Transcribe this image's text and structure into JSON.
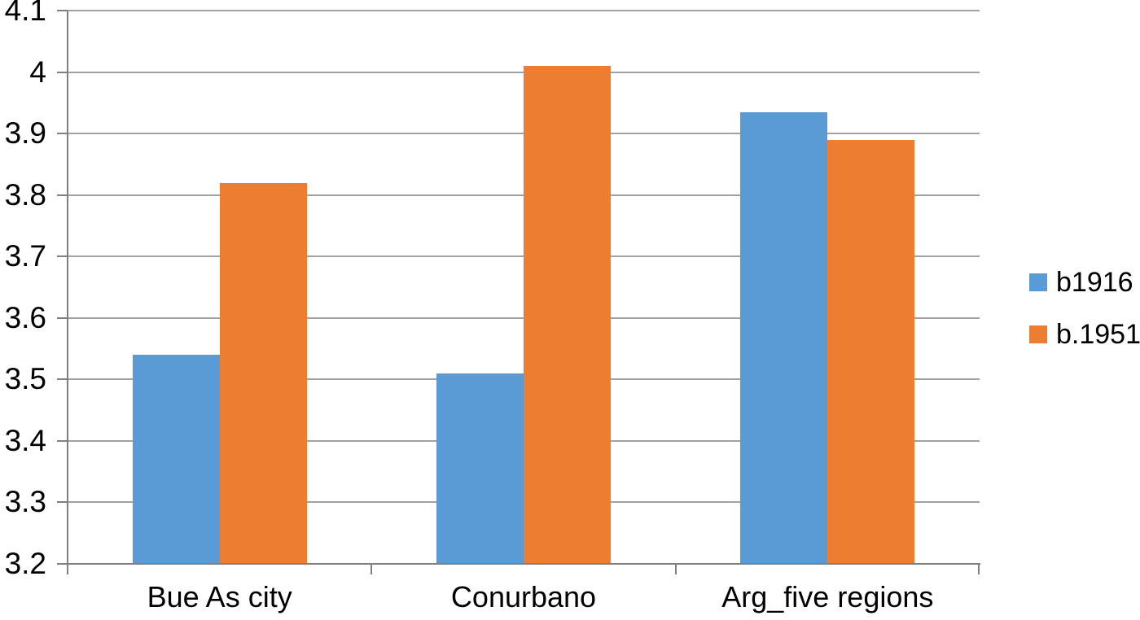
{
  "chart_data": {
    "type": "bar",
    "title": "",
    "categories": [
      "Bue As city",
      "Conurbano",
      "Arg_five regions"
    ],
    "series": [
      {
        "name": "b1916",
        "color": "#5B9BD5",
        "values": [
          3.54,
          3.51,
          3.935
        ]
      },
      {
        "name": "b.1951",
        "color": "#ED7D31",
        "values": [
          3.82,
          4.01,
          3.89
        ]
      }
    ],
    "xlabel": "",
    "ylabel": "",
    "ylim": [
      3.2,
      4.1
    ],
    "ytick_step": 0.1,
    "ytick_labels": [
      "3.2",
      "3.3",
      "3.4",
      "3.5",
      "3.6",
      "3.7",
      "3.8",
      "3.9",
      "4",
      "4.1"
    ],
    "grid": true,
    "legend_position": "right"
  },
  "style": {
    "gridline_color": "#a2a2a2",
    "axis_color": "#7f7f7f",
    "text_color": "#000000",
    "background_color": "#ffffff"
  }
}
